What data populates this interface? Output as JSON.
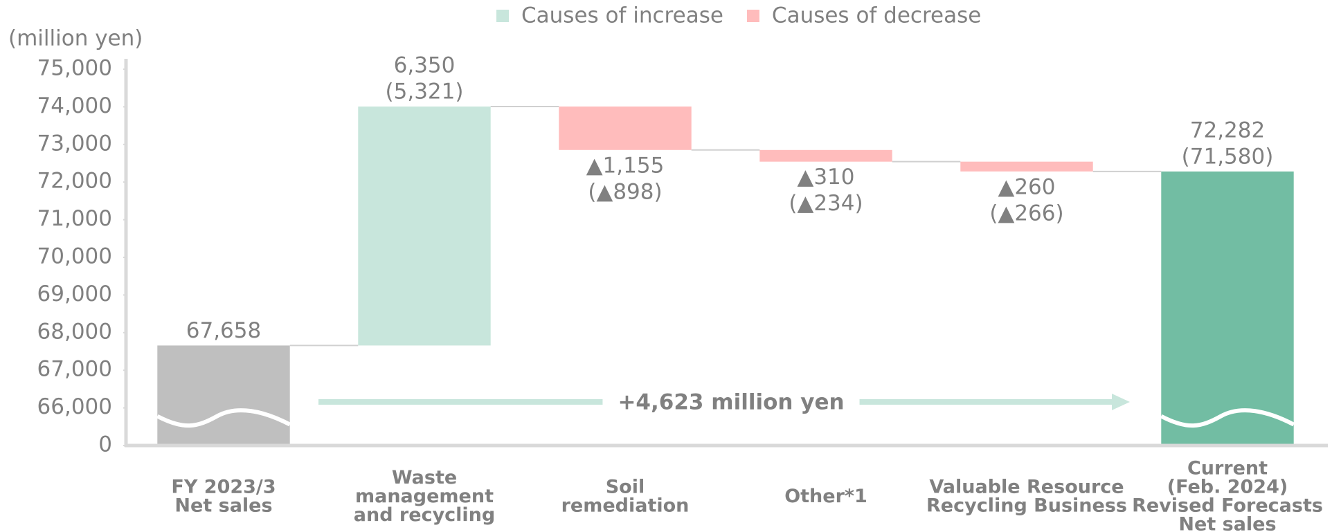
{
  "chart_data": {
    "type": "waterfall",
    "unit_label": "(million yen)",
    "categories": [
      "FY 2023/3\nNet  sales",
      "Waste\nmanagement\nand recycling",
      "Soil\nremediation",
      "Other*1",
      "Valuable Resource\nRecycling Business",
      "Current\n(Feb. 2024)\nRevised Forecasts\nNet  sales"
    ],
    "measure": [
      "total",
      "relative",
      "relative",
      "relative",
      "relative",
      "total"
    ],
    "values": [
      67658,
      6350,
      -1155,
      -310,
      -260,
      72282
    ],
    "value_labels": [
      "67,658",
      "6,350",
      "▲1,155",
      "▲310",
      "▲260",
      "72,282"
    ],
    "previous_values": [
      null,
      5321,
      -898,
      -234,
      -266,
      71580
    ],
    "previous_value_labels": [
      null,
      "(5,321)",
      "(▲898)",
      "(▲234)",
      "(▲266)",
      "(71,580)"
    ],
    "colors": {
      "start": "#bfbfbf",
      "end": "#72bda3",
      "increase": "#c8e6dc",
      "decrease": "#ffbcbc"
    },
    "legend": [
      {
        "name": "Causes of increase",
        "color": "#c8e6dc"
      },
      {
        "name": "Causes of decrease",
        "color": "#ffbcbc"
      }
    ],
    "legend_position": "top",
    "ylim": [
      0,
      75000
    ],
    "y_break": [
      0,
      65000
    ],
    "yticks": [
      0,
      {
        "value": 66000,
        "label": "66,000"
      },
      {
        "value": 67000,
        "label": "67,000"
      },
      {
        "value": 68000,
        "label": "68,000"
      },
      {
        "value": 69000,
        "label": "69,000"
      },
      {
        "value": 70000,
        "label": "70,000"
      },
      {
        "value": 71000,
        "label": "71,000"
      },
      {
        "value": 72000,
        "label": "72,000"
      },
      {
        "value": 73000,
        "label": "73,000"
      },
      {
        "value": 74000,
        "label": "74,000"
      },
      {
        "value": 75000,
        "label": "75,000"
      }
    ],
    "annotation": "+4,623 million yen"
  }
}
